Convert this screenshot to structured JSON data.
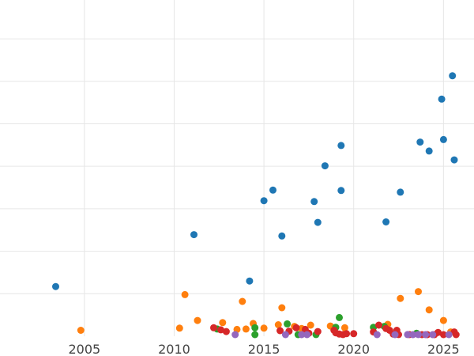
{
  "chart_data": {
    "type": "scatter",
    "title": "",
    "xlabel": "",
    "ylabel": "",
    "xlim": [
      2000.3,
      2026.7
    ],
    "ylim": [
      0,
      8.1
    ],
    "grid": true,
    "x_ticks": [
      2005,
      2010,
      2015,
      2020,
      2025
    ],
    "x_tick_labels": [
      "2005",
      "2010",
      "2015",
      "2020",
      "2025"
    ],
    "colors": {
      "blue": "#1f77b4",
      "orange": "#ff7f0e",
      "green": "#2ca02c",
      "red": "#d62728",
      "purple": "#9467bd",
      "grid": "#e6e6e6",
      "axis_text": "#444444"
    },
    "series": [
      {
        "color": "#1f77b4",
        "points": [
          [
            2003.4,
            1.17
          ],
          [
            2011.1,
            2.39
          ],
          [
            2014.2,
            1.3
          ],
          [
            2015.0,
            3.19
          ],
          [
            2015.5,
            3.44
          ],
          [
            2016.0,
            2.36
          ],
          [
            2017.8,
            3.17
          ],
          [
            2018.0,
            2.68
          ],
          [
            2018.4,
            4.01
          ],
          [
            2019.3,
            4.49
          ],
          [
            2019.3,
            3.43
          ],
          [
            2021.8,
            2.69
          ],
          [
            2022.6,
            3.39
          ],
          [
            2023.7,
            4.57
          ],
          [
            2024.2,
            4.36
          ],
          [
            2024.9,
            5.58
          ],
          [
            2025.0,
            4.63
          ],
          [
            2025.5,
            6.13
          ],
          [
            2025.6,
            4.15
          ]
        ]
      },
      {
        "color": "#ff7f0e",
        "points": [
          [
            2004.8,
            0.14
          ],
          [
            2010.3,
            0.19
          ],
          [
            2010.6,
            0.98
          ],
          [
            2011.3,
            0.37
          ],
          [
            2012.7,
            0.32
          ],
          [
            2013.5,
            0.16
          ],
          [
            2013.8,
            0.82
          ],
          [
            2014.0,
            0.17
          ],
          [
            2014.4,
            0.3
          ],
          [
            2015.0,
            0.19
          ],
          [
            2015.8,
            0.27
          ],
          [
            2016.0,
            0.67
          ],
          [
            2016.7,
            0.23
          ],
          [
            2017.1,
            0.18
          ],
          [
            2017.6,
            0.26
          ],
          [
            2018.7,
            0.24
          ],
          [
            2019.5,
            0.2
          ],
          [
            2021.9,
            0.28
          ],
          [
            2022.6,
            0.89
          ],
          [
            2023.6,
            1.05
          ],
          [
            2024.2,
            0.62
          ],
          [
            2025.0,
            0.37
          ],
          [
            2025.4,
            0.1
          ]
        ]
      },
      {
        "color": "#2ca02c",
        "points": [
          [
            2012.4,
            0.17
          ],
          [
            2014.5,
            0.2
          ],
          [
            2014.5,
            0.02
          ],
          [
            2016.3,
            0.29
          ],
          [
            2016.9,
            0.03
          ],
          [
            2017.9,
            0.04
          ],
          [
            2019.0,
            0.21
          ],
          [
            2019.2,
            0.44
          ],
          [
            2021.1,
            0.21
          ],
          [
            2021.7,
            0.23
          ],
          [
            2023.5,
            0.07
          ]
        ]
      },
      {
        "color": "#d62728",
        "points": [
          [
            2012.2,
            0.2
          ],
          [
            2012.6,
            0.15
          ],
          [
            2012.9,
            0.11
          ],
          [
            2015.9,
            0.13
          ],
          [
            2016.4,
            0.12
          ],
          [
            2016.8,
            0.2
          ],
          [
            2017.3,
            0.16
          ],
          [
            2017.5,
            0.07
          ],
          [
            2018.0,
            0.11
          ],
          [
            2018.9,
            0.14
          ],
          [
            2019.0,
            0.08
          ],
          [
            2019.2,
            0.05
          ],
          [
            2019.4,
            0.04
          ],
          [
            2019.6,
            0.06
          ],
          [
            2020.0,
            0.06
          ],
          [
            2021.1,
            0.1
          ],
          [
            2021.4,
            0.26
          ],
          [
            2021.8,
            0.18
          ],
          [
            2022.0,
            0.14
          ],
          [
            2022.2,
            0.05
          ],
          [
            2022.4,
            0.14
          ],
          [
            2022.5,
            0.04
          ],
          [
            2023.1,
            0.04
          ],
          [
            2023.8,
            0.02
          ],
          [
            2024.1,
            0.01
          ],
          [
            2024.5,
            0.02
          ],
          [
            2024.7,
            0.09
          ],
          [
            2025.0,
            0.02
          ],
          [
            2025.6,
            0.1
          ],
          [
            2025.7,
            0.03
          ]
        ]
      },
      {
        "color": "#9467bd",
        "points": [
          [
            2013.4,
            0.02
          ],
          [
            2016.2,
            0.01
          ],
          [
            2017.1,
            0.03
          ],
          [
            2017.4,
            0.02
          ],
          [
            2021.3,
            0.02
          ],
          [
            2022.3,
            0.03
          ],
          [
            2023.0,
            0.04
          ],
          [
            2023.3,
            0.02
          ],
          [
            2023.6,
            0.04
          ],
          [
            2024.0,
            0.02
          ],
          [
            2024.4,
            0.01
          ],
          [
            2025.3,
            0.02
          ]
        ]
      }
    ]
  }
}
